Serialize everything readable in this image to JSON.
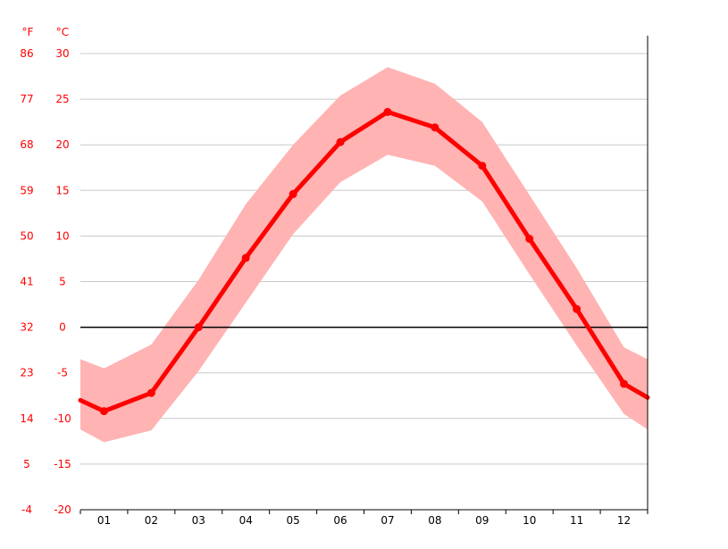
{
  "chart_data": {
    "type": "line",
    "categories": [
      "01",
      "02",
      "03",
      "04",
      "05",
      "06",
      "07",
      "08",
      "09",
      "10",
      "11",
      "12"
    ],
    "unit_f": "°F",
    "unit_c": "°C",
    "y_ticks_c": [
      "30",
      "25",
      "20",
      "15",
      "10",
      "5",
      "0",
      "-5",
      "-10",
      "-15",
      "-20"
    ],
    "y_ticks_f": [
      "86",
      "77",
      "68",
      "59",
      "50",
      "41",
      "32",
      "23",
      "14",
      "5",
      "-4"
    ],
    "ylim_c": [
      -20,
      30
    ],
    "grid": true,
    "zero_line": true,
    "series": [
      {
        "values": [
          -9.2,
          -7.2,
          0.0,
          7.6,
          14.6,
          20.3,
          23.6,
          21.9,
          17.7,
          9.7,
          2.0,
          -6.2
        ]
      }
    ],
    "band": {
      "upper": [
        -4.5,
        -1.9,
        5.2,
        13.5,
        20.0,
        25.4,
        28.5,
        26.7,
        22.5,
        14.5,
        6.5,
        -2.2
      ],
      "lower": [
        -12.6,
        -11.3,
        -4.8,
        2.7,
        10.2,
        15.9,
        18.9,
        17.7,
        13.8,
        5.8,
        -2.0,
        -9.5
      ],
      "lower_edge_start": -11.2,
      "lower_edge_end": -11.2,
      "upper_edge_start": -3.5,
      "upper_edge_end": -3.5
    },
    "line_edge_start": -8.0,
    "line_edge_end": -7.7,
    "colors": {
      "line": "#ff0000",
      "band": "#ffb3b3",
      "grid": "#c8c8c8",
      "axis": "#000000",
      "tick_label_y": "#ff0000",
      "tick_label_x": "#000000"
    }
  }
}
